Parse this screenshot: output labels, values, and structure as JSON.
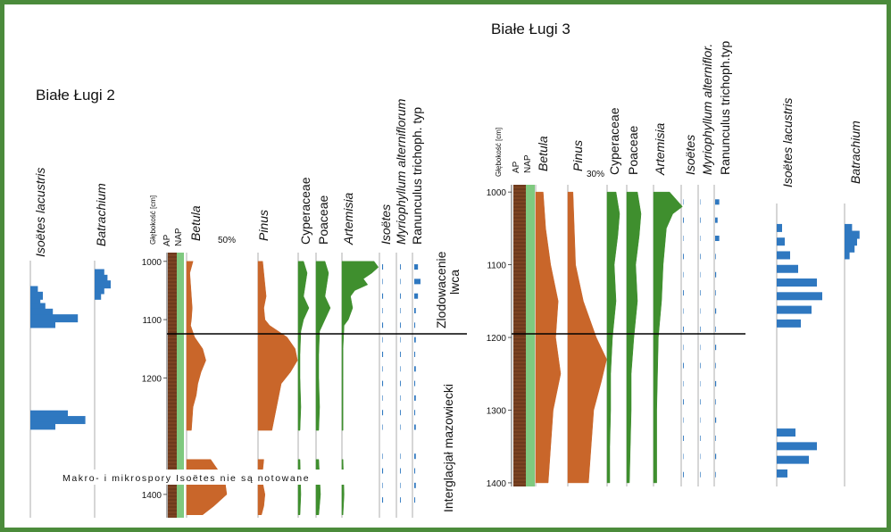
{
  "colors": {
    "border": "#4b8b3b",
    "ap": "#6e3a1d",
    "nap": "#7fc97f",
    "betula": "#c9662a",
    "herbs": "#3f8f2e",
    "aquatic": "#2f78c0",
    "boundary": "#000000"
  },
  "labels": {
    "title_bl2": "Białe Ługi 2",
    "title_bl3": "Białe Ługi 3",
    "depth_axis": "Głębokość [cm]",
    "ap": "AP",
    "nap": "NAP",
    "betula": "Betula",
    "pinus": "Pinus",
    "cyperaceae": "Cyperaceae",
    "poaceae": "Poaceae",
    "artemisia": "Artemisia",
    "isoetes": "Isoëtes",
    "myriophyllum_bl2": "Myriophyllum alterniflorum",
    "myriophyllum_bl3": "Myriophyllum alterniflor.",
    "ranunculus_bl2": "Ranunculus trichoph. typ",
    "ranunculus_bl3": "Ranunculus trichoph.typ",
    "isoetes_lacustris": "Isoëtes lacustris",
    "batrachium": "Batrachium",
    "pct50": "50%",
    "pct30": "30%",
    "zone_upper_1": "Zlodowacenie",
    "zone_upper_2": "lwca",
    "zone_lower": "Interglacjał mazowiecki",
    "note": "Makro- i mikrospory Isoëtes nie są notowane"
  },
  "chart_data": [
    {
      "type": "area",
      "title": "Białe Ługi 2",
      "ylabel": "Głębokość [cm]",
      "y_ticks": [
        1000,
        1100,
        1200,
        1400
      ],
      "ylim": [
        985,
        1440
      ],
      "boundary_depth": 1110,
      "gap_depths": [
        1300,
        1330
      ],
      "columns": [
        "AP",
        "NAP",
        "Betula",
        "Pinus",
        "Cyperaceae",
        "Poaceae",
        "Artemisia",
        "Isoëtes",
        "Myriophyllum alterniflorum",
        "Ranunculus trichoph. typ"
      ],
      "series": [
        {
          "name": "Betula",
          "depth": [
            1000,
            1020,
            1040,
            1060,
            1080,
            1100,
            1110,
            1130,
            1150,
            1170,
            1190,
            1210,
            1230,
            1250,
            1270,
            1290,
            1340,
            1360,
            1380,
            1400,
            1420,
            1435
          ],
          "values": [
            8,
            4,
            5,
            6,
            7,
            6,
            5,
            10,
            20,
            24,
            18,
            14,
            12,
            8,
            7,
            6,
            30,
            40,
            48,
            50,
            34,
            20
          ]
        },
        {
          "name": "Pinus",
          "depth": [
            1000,
            1020,
            1040,
            1060,
            1080,
            1100,
            1110,
            1130,
            1150,
            1170,
            1190,
            1210,
            1230,
            1250,
            1270,
            1290,
            1340,
            1360,
            1380,
            1400,
            1420,
            1435
          ],
          "values": [
            4,
            5,
            6,
            7,
            5,
            6,
            10,
            25,
            32,
            34,
            28,
            20,
            18,
            16,
            14,
            12,
            5,
            4,
            4,
            6,
            5,
            3
          ]
        },
        {
          "name": "Cyperaceae",
          "depth": [
            1000,
            1020,
            1040,
            1060,
            1080,
            1100,
            1120,
            1160,
            1200,
            1250,
            1290,
            1340,
            1400,
            1435
          ],
          "values": [
            6,
            10,
            8,
            6,
            12,
            6,
            3,
            2,
            2,
            3,
            2,
            2,
            3,
            2
          ]
        },
        {
          "name": "Poaceae",
          "depth": [
            1000,
            1020,
            1040,
            1060,
            1080,
            1100,
            1120,
            1160,
            1200,
            1250,
            1290,
            1340,
            1400,
            1435
          ],
          "values": [
            10,
            14,
            12,
            10,
            16,
            10,
            4,
            3,
            3,
            4,
            3,
            3,
            5,
            3
          ]
        },
        {
          "name": "Artemisia",
          "depth": [
            1000,
            1010,
            1020,
            1030,
            1040,
            1050,
            1060,
            1080,
            1100,
            1110,
            1150,
            1200,
            1250,
            1290,
            1340,
            1400,
            1435
          ],
          "values": [
            30,
            34,
            28,
            20,
            24,
            12,
            8,
            10,
            6,
            2,
            1,
            1,
            1,
            1,
            1,
            2,
            1
          ]
        }
      ],
      "side_panel": {
        "series": [
          {
            "name": "Isoëtes lacustris",
            "depth": [
              1030,
              1040,
              1050,
              1060,
              1070,
              1080,
              1090,
              1250,
              1260,
              1270
            ],
            "values": [
              6,
              10,
              8,
              12,
              18,
              38,
              20,
              30,
              44,
              20
            ]
          },
          {
            "name": "Batrachium",
            "depth": [
              1000,
              1010,
              1020,
              1030,
              1040
            ],
            "values": [
              6,
              8,
              10,
              6,
              4
            ]
          }
        ]
      }
    },
    {
      "type": "area",
      "title": "Białe Ługi 3",
      "ylabel": "Głębokość [cm]",
      "y_ticks": [
        1000,
        1100,
        1200,
        1300,
        1400
      ],
      "ylim": [
        990,
        1405
      ],
      "boundary_depth": 1195,
      "columns": [
        "AP",
        "NAP",
        "Betula",
        "Pinus",
        "Cyperaceae",
        "Poaceae",
        "Artemisia",
        "Isoëtes",
        "Myriophyllum alterniflor.",
        "Ranunculus trichoph.typ"
      ],
      "series": [
        {
          "name": "Betula",
          "depth": [
            1000,
            1050,
            1100,
            1150,
            1200,
            1250,
            1300,
            1350,
            1400
          ],
          "values": [
            6,
            8,
            12,
            18,
            16,
            20,
            14,
            12,
            10
          ]
        },
        {
          "name": "Pinus",
          "depth": [
            1000,
            1050,
            1100,
            1150,
            1200,
            1230,
            1260,
            1300,
            1350,
            1400
          ],
          "values": [
            4,
            5,
            6,
            12,
            22,
            30,
            26,
            20,
            18,
            16
          ]
        },
        {
          "name": "Cyperaceae",
          "depth": [
            1000,
            1030,
            1060,
            1100,
            1150,
            1200,
            1250,
            1300,
            1350,
            1400
          ],
          "values": [
            10,
            14,
            12,
            8,
            10,
            6,
            4,
            4,
            3,
            3
          ]
        },
        {
          "name": "Poaceae",
          "depth": [
            1000,
            1030,
            1060,
            1100,
            1150,
            1200,
            1250,
            1300,
            1350,
            1400
          ],
          "values": [
            12,
            16,
            14,
            10,
            12,
            8,
            5,
            5,
            4,
            3
          ]
        },
        {
          "name": "Artemisia",
          "depth": [
            1000,
            1010,
            1020,
            1030,
            1050,
            1100,
            1150,
            1200,
            1300,
            1400
          ],
          "values": [
            10,
            14,
            18,
            12,
            8,
            6,
            5,
            3,
            2,
            2
          ]
        }
      ],
      "side_panel": {
        "series": [
          {
            "name": "Isoëtes lacustris",
            "depth": [
              1020,
              1040,
              1060,
              1080,
              1100,
              1120,
              1140,
              1160,
              1320,
              1340,
              1360,
              1380
            ],
            "values": [
              4,
              6,
              10,
              16,
              30,
              34,
              26,
              18,
              14,
              30,
              24,
              8
            ]
          },
          {
            "name": "Batrachium",
            "depth": [
              1020,
              1030,
              1040,
              1050,
              1060
            ],
            "values": [
              6,
              12,
              10,
              8,
              4
            ]
          }
        ]
      }
    }
  ]
}
